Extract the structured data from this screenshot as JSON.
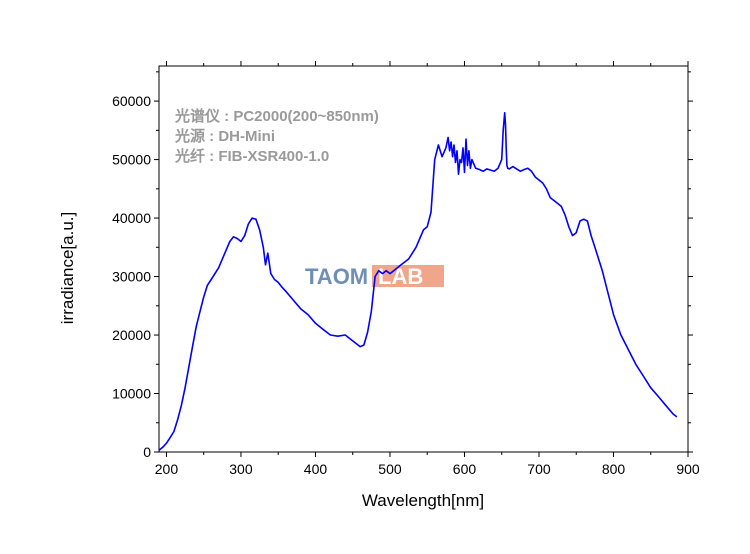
{
  "chart_data": {
    "type": "line",
    "title": "",
    "xlabel": "Wavelength[nm]",
    "ylabel": "irradiance[a.u.]",
    "xlim": [
      190,
      900
    ],
    "ylim": [
      0,
      66000
    ],
    "x_ticks": [
      200,
      300,
      400,
      500,
      600,
      700,
      800,
      900
    ],
    "y_ticks": [
      0,
      10000,
      20000,
      30000,
      40000,
      50000,
      60000
    ],
    "grid": false,
    "line_color": "#0000ff",
    "annotations": [
      "光谱仪 : PC2000(200~850nm)",
      "光源 : DH-Mini",
      "光纤 : FIB-XSR400-1.0"
    ],
    "watermark": {
      "left": "TAOM",
      "right": "LAB"
    },
    "series": [
      {
        "x": [
          190,
          195,
          200,
          205,
          210,
          215,
          220,
          225,
          230,
          235,
          240,
          245,
          250,
          255,
          260,
          270,
          280,
          285,
          290,
          295,
          300,
          305,
          310,
          315,
          320,
          325,
          330,
          333,
          336,
          340,
          345,
          350,
          355,
          360,
          370,
          380,
          390,
          400,
          410,
          420,
          430,
          440,
          445,
          450,
          455,
          460,
          465,
          470,
          475,
          480,
          485,
          490,
          495,
          500,
          505,
          510,
          515,
          520,
          525,
          530,
          535,
          540,
          545,
          550,
          555,
          560,
          565,
          570,
          575,
          578,
          580,
          582,
          584,
          586,
          588,
          590,
          592,
          594,
          596,
          598,
          600,
          602,
          604,
          606,
          608,
          610,
          615,
          620,
          625,
          630,
          635,
          640,
          645,
          650,
          652,
          654,
          655,
          656,
          657,
          658,
          660,
          665,
          670,
          675,
          680,
          685,
          690,
          695,
          700,
          705,
          710,
          715,
          720,
          725,
          730,
          735,
          740,
          745,
          750,
          755,
          760,
          765,
          770,
          775,
          780,
          785,
          790,
          795,
          800,
          810,
          820,
          830,
          840,
          850,
          860,
          870,
          880,
          885
        ],
        "y": [
          300,
          800,
          1500,
          2500,
          3500,
          5500,
          8000,
          11000,
          14500,
          18000,
          21500,
          24000,
          26500,
          28500,
          29500,
          31500,
          34500,
          36000,
          36800,
          36500,
          36000,
          37000,
          39000,
          40000,
          39800,
          38000,
          35000,
          32000,
          34000,
          30500,
          29500,
          29000,
          28200,
          27500,
          26000,
          24500,
          23500,
          22000,
          21000,
          20000,
          19800,
          20000,
          19500,
          19000,
          18500,
          18000,
          18300,
          20500,
          24000,
          30000,
          31000,
          30500,
          31000,
          30500,
          31000,
          31500,
          32000,
          32500,
          33000,
          34000,
          35000,
          36500,
          38000,
          38500,
          41000,
          50000,
          52500,
          50500,
          52000,
          53800,
          51500,
          53000,
          50500,
          52500,
          49500,
          51500,
          47500,
          50000,
          49500,
          52000,
          47800,
          53500,
          49000,
          51500,
          48500,
          50000,
          48500,
          48300,
          48000,
          48400,
          48200,
          48000,
          48500,
          50000,
          55000,
          58000,
          56000,
          52000,
          49000,
          48500,
          48400,
          48800,
          48400,
          48000,
          48300,
          48500,
          48000,
          47000,
          46500,
          46000,
          45000,
          43500,
          43000,
          42500,
          42000,
          40500,
          38500,
          37000,
          37500,
          39500,
          39800,
          39500,
          37000,
          35000,
          33000,
          31000,
          28500,
          26000,
          23500,
          20000,
          17500,
          15000,
          13000,
          11000,
          9500,
          8000,
          6500,
          6000
        ]
      }
    ]
  }
}
